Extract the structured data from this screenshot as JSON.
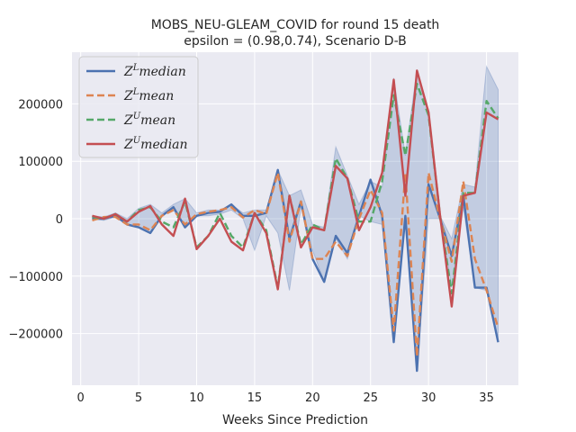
{
  "chart_data": {
    "type": "line",
    "title": "MOBS_NEU-GLEAM_COVID for round 15 death",
    "subtitle": "epsilon = (0.98,0.74), Scenario D-B",
    "xlabel": "Weeks Since Prediction",
    "ylabel": "",
    "xlim": [
      -0.75,
      37.75
    ],
    "ylim": [
      -290000,
      290000
    ],
    "xticks": [
      0,
      5,
      10,
      15,
      20,
      25,
      30,
      35
    ],
    "xtick_labels": [
      "0",
      "5",
      "10",
      "15",
      "20",
      "25",
      "30",
      "35"
    ],
    "yticks": [
      -200000,
      -100000,
      0,
      100000,
      200000
    ],
    "ytick_labels": [
      "−200000",
      "−100000",
      "0",
      "100000",
      "200000"
    ],
    "grid": true,
    "legend_position": "top-left",
    "background_color": "#eaeaf2",
    "band": {
      "color": "#4c72b0",
      "lower": [
        0,
        -3000,
        3000,
        -10000,
        -15000,
        -25000,
        5000,
        15000,
        -15000,
        5000,
        5000,
        8000,
        15000,
        0,
        -55000,
        5000,
        -25000,
        -125000,
        20000,
        -55000,
        -110000,
        -35000,
        -70000,
        5000,
        -5000,
        -10000,
        -215000,
        5000,
        -265000,
        0,
        0,
        -120000,
        20000,
        -120000,
        -125000,
        -215000
      ],
      "upper": [
        5000,
        3000,
        10000,
        0,
        18000,
        25000,
        10000,
        25000,
        35000,
        10000,
        15000,
        15000,
        25000,
        10000,
        15000,
        15000,
        85000,
        40000,
        50000,
        -10000,
        -15000,
        125000,
        75000,
        25000,
        65000,
        55000,
        245000,
        110000,
        260000,
        185000,
        5000,
        -35000,
        60000,
        55000,
        265000,
        225000
      ],
      "opacity": 0.25
    },
    "series": [
      {
        "name": "Z^L median",
        "name_base": "Z",
        "name_sup": "L",
        "name_suffix": "median",
        "color": "#4c72b0",
        "dashed": false,
        "x": [
          1,
          2,
          3,
          4,
          5,
          6,
          7,
          8,
          9,
          10,
          11,
          12,
          13,
          14,
          15,
          16,
          17,
          18,
          19,
          20,
          21,
          22,
          23,
          24,
          25,
          26,
          27,
          28,
          29,
          30,
          31,
          32,
          33,
          34,
          35,
          36
        ],
        "values": [
          0,
          0,
          5000,
          -10000,
          -15000,
          -25000,
          5000,
          20000,
          -15000,
          5000,
          10000,
          12000,
          25000,
          5000,
          5000,
          10000,
          85000,
          -35000,
          30000,
          -70000,
          -110000,
          -30000,
          -60000,
          5000,
          68000,
          5000,
          -215000,
          5000,
          -265000,
          60000,
          0,
          -65000,
          40000,
          -120000,
          -120000,
          -215000
        ]
      },
      {
        "name": "Z^L mean",
        "name_base": "Z",
        "name_sup": "L",
        "name_suffix": "mean",
        "color": "#dd8452",
        "dashed": true,
        "x": [
          1,
          2,
          3,
          4,
          5,
          6,
          7,
          8,
          9,
          10,
          11,
          12,
          13,
          14,
          15,
          16,
          17,
          18,
          19,
          20,
          21,
          22,
          23,
          24,
          25,
          26,
          27,
          28,
          29,
          30,
          31,
          32,
          33,
          34,
          35,
          36
        ],
        "values": [
          -3000,
          3000,
          3000,
          -10000,
          -10000,
          -20000,
          5000,
          15000,
          -10000,
          8000,
          12000,
          15000,
          20000,
          2000,
          15000,
          8000,
          80000,
          -40000,
          30000,
          -70000,
          -70000,
          -40000,
          -65000,
          0,
          50000,
          10000,
          -195000,
          80000,
          -240000,
          80000,
          0,
          -75000,
          65000,
          -70000,
          -125000,
          -190000
        ]
      },
      {
        "name": "Z^U mean",
        "name_base": "Z",
        "name_sup": "U",
        "name_suffix": "mean",
        "color": "#55a868",
        "dashed": true,
        "x": [
          1,
          2,
          3,
          4,
          5,
          6,
          7,
          8,
          9,
          10,
          11,
          12,
          13,
          14,
          15,
          16,
          17,
          18,
          19,
          20,
          21,
          22,
          23,
          24,
          25,
          26,
          27,
          28,
          29,
          30,
          31,
          32,
          33,
          34,
          35,
          36
        ],
        "values": [
          3000,
          0,
          8000,
          -5000,
          15000,
          20000,
          -5000,
          -15000,
          30000,
          -50000,
          -30000,
          10000,
          -30000,
          -50000,
          10000,
          -20000,
          -120000,
          40000,
          -45000,
          -10000,
          -20000,
          105000,
          70000,
          -5000,
          -5000,
          65000,
          215000,
          110000,
          235000,
          180000,
          5000,
          -130000,
          45000,
          45000,
          205000,
          175000
        ]
      },
      {
        "name": "Z^U median",
        "name_base": "Z",
        "name_sup": "U",
        "name_suffix": "median",
        "color": "#c44e52",
        "dashed": false,
        "x": [
          1,
          2,
          3,
          4,
          5,
          6,
          7,
          8,
          9,
          10,
          11,
          12,
          13,
          14,
          15,
          16,
          17,
          18,
          19,
          20,
          21,
          22,
          23,
          24,
          25,
          26,
          27,
          28,
          29,
          30,
          31,
          32,
          33,
          34,
          35,
          36
        ],
        "values": [
          5000,
          0,
          8000,
          -5000,
          12000,
          22000,
          -10000,
          -30000,
          35000,
          -53000,
          -30000,
          0,
          -40000,
          -55000,
          10000,
          -25000,
          -123000,
          40000,
          -50000,
          -15000,
          -20000,
          92000,
          70000,
          -20000,
          20000,
          80000,
          242000,
          40000,
          258000,
          185000,
          5000,
          -153000,
          40000,
          45000,
          185000,
          173000
        ]
      }
    ]
  }
}
